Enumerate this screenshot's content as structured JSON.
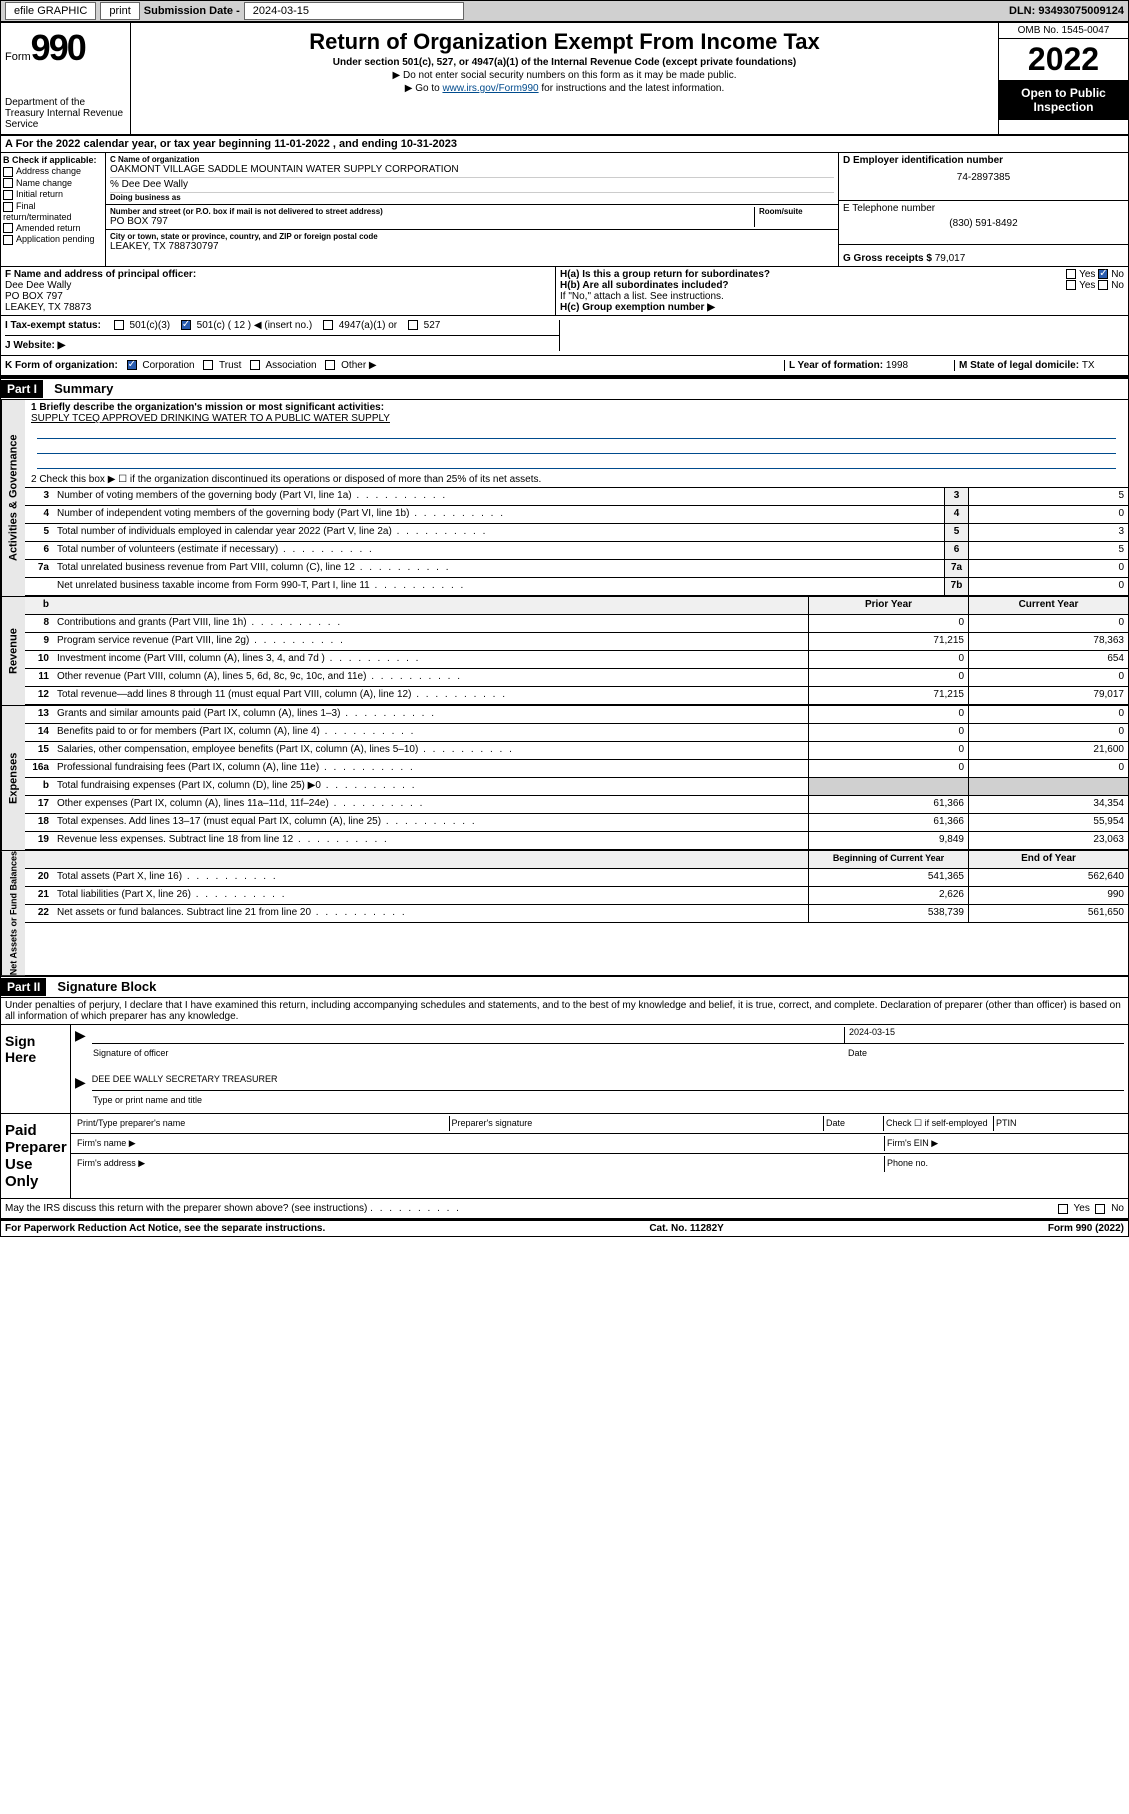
{
  "topbar": {
    "efile": "efile GRAPHIC",
    "print": "print",
    "submission_label": "Submission Date - ",
    "submission_date": "2024-03-15",
    "dln_label": "DLN: ",
    "dln": "93493075009124"
  },
  "header": {
    "form_label": "Form",
    "form_no": "990",
    "dept": "Department of the Treasury Internal Revenue Service",
    "title": "Return of Organization Exempt From Income Tax",
    "subtitle": "Under section 501(c), 527, or 4947(a)(1) of the Internal Revenue Code (except private foundations)",
    "note1": "▶ Do not enter social security numbers on this form as it may be made public.",
    "note2_pre": "▶ Go to ",
    "note2_link": "www.irs.gov/Form990",
    "note2_post": " for instructions and the latest information.",
    "omb": "OMB No. 1545-0047",
    "year": "2022",
    "open": "Open to Public Inspection"
  },
  "line_a": "A For the 2022 calendar year, or tax year beginning 11-01-2022   , and ending 10-31-2023",
  "section_b": {
    "label": "B Check if applicable:",
    "items": [
      "Address change",
      "Name change",
      "Initial return",
      "Final return/terminated",
      "Amended return",
      "Application pending"
    ]
  },
  "section_c": {
    "name_label": "C Name of organization",
    "name": "OAKMONT VILLAGE SADDLE MOUNTAIN WATER SUPPLY CORPORATION",
    "care_of": "% Dee Dee Wally",
    "dba_label": "Doing business as",
    "street_label": "Number and street (or P.O. box if mail is not delivered to street address)",
    "room_label": "Room/suite",
    "street": "PO BOX 797",
    "city_label": "City or town, state or province, country, and ZIP or foreign postal code",
    "city": "LEAKEY, TX  788730797"
  },
  "section_d": {
    "label": "D Employer identification number",
    "value": "74-2897385"
  },
  "section_e": {
    "label": "E Telephone number",
    "value": "(830) 591-8492"
  },
  "section_g": {
    "label": "G Gross receipts $",
    "value": "79,017"
  },
  "section_f": {
    "label": "F Name and address of principal officer:",
    "name": "Dee Dee Wally",
    "street": "PO BOX 797",
    "city": "LEAKEY, TX  78873"
  },
  "section_h": {
    "ha": "H(a)  Is this a group return for subordinates?",
    "ha_yes": "Yes",
    "ha_no": "No",
    "hb": "H(b)  Are all subordinates included?",
    "hb_note": "If \"No,\" attach a list. See instructions.",
    "hc": "H(c)  Group exemption number ▶"
  },
  "section_i": {
    "label": "I   Tax-exempt status:",
    "opts": [
      "501(c)(3)",
      "501(c) ( 12 ) ◀ (insert no.)",
      "4947(a)(1) or",
      "527"
    ]
  },
  "section_j": {
    "label": "J   Website: ▶"
  },
  "section_k": {
    "label": "K Form of organization:",
    "opts": [
      "Corporation",
      "Trust",
      "Association",
      "Other ▶"
    ]
  },
  "section_l": {
    "label": "L Year of formation: ",
    "value": "1998"
  },
  "section_m": {
    "label": "M State of legal domicile: ",
    "value": "TX"
  },
  "part1": {
    "header": "Part I",
    "title": "Summary",
    "side_labels": [
      "Activities & Governance",
      "Revenue",
      "Expenses",
      "Net Assets or Fund Balances"
    ],
    "line1_label": "1   Briefly describe the organization's mission or most significant activities:",
    "line1_text": "SUPPLY TCEQ APPROVED DRINKING WATER TO A PUBLIC WATER SUPPLY",
    "line2": "2   Check this box ▶ ☐  if the organization discontinued its operations or disposed of more than 25% of its net assets.",
    "rows_gov": [
      {
        "n": "3",
        "desc": "Number of voting members of the governing body (Part VI, line 1a)",
        "box": "3",
        "val": "5"
      },
      {
        "n": "4",
        "desc": "Number of independent voting members of the governing body (Part VI, line 1b)",
        "box": "4",
        "val": "0"
      },
      {
        "n": "5",
        "desc": "Total number of individuals employed in calendar year 2022 (Part V, line 2a)",
        "box": "5",
        "val": "3"
      },
      {
        "n": "6",
        "desc": "Total number of volunteers (estimate if necessary)",
        "box": "6",
        "val": "5"
      },
      {
        "n": "7a",
        "desc": "Total unrelated business revenue from Part VIII, column (C), line 12",
        "box": "7a",
        "val": "0"
      },
      {
        "n": "",
        "desc": "Net unrelated business taxable income from Form 990-T, Part I, line 11",
        "box": "7b",
        "val": "0"
      }
    ],
    "col_headers": {
      "prior": "Prior Year",
      "current": "Current Year"
    },
    "rows_rev": [
      {
        "n": "8",
        "desc": "Contributions and grants (Part VIII, line 1h)",
        "prior": "0",
        "cur": "0"
      },
      {
        "n": "9",
        "desc": "Program service revenue (Part VIII, line 2g)",
        "prior": "71,215",
        "cur": "78,363"
      },
      {
        "n": "10",
        "desc": "Investment income (Part VIII, column (A), lines 3, 4, and 7d )",
        "prior": "0",
        "cur": "654"
      },
      {
        "n": "11",
        "desc": "Other revenue (Part VIII, column (A), lines 5, 6d, 8c, 9c, 10c, and 11e)",
        "prior": "0",
        "cur": "0"
      },
      {
        "n": "12",
        "desc": "Total revenue—add lines 8 through 11 (must equal Part VIII, column (A), line 12)",
        "prior": "71,215",
        "cur": "79,017"
      }
    ],
    "rows_exp": [
      {
        "n": "13",
        "desc": "Grants and similar amounts paid (Part IX, column (A), lines 1–3)",
        "prior": "0",
        "cur": "0"
      },
      {
        "n": "14",
        "desc": "Benefits paid to or for members (Part IX, column (A), line 4)",
        "prior": "0",
        "cur": "0"
      },
      {
        "n": "15",
        "desc": "Salaries, other compensation, employee benefits (Part IX, column (A), lines 5–10)",
        "prior": "0",
        "cur": "21,600"
      },
      {
        "n": "16a",
        "desc": "Professional fundraising fees (Part IX, column (A), line 11e)",
        "prior": "0",
        "cur": "0"
      },
      {
        "n": "b",
        "desc": "Total fundraising expenses (Part IX, column (D), line 25) ▶0",
        "prior": "",
        "cur": ""
      },
      {
        "n": "17",
        "desc": "Other expenses (Part IX, column (A), lines 11a–11d, 11f–24e)",
        "prior": "61,366",
        "cur": "34,354"
      },
      {
        "n": "18",
        "desc": "Total expenses. Add lines 13–17 (must equal Part IX, column (A), line 25)",
        "prior": "61,366",
        "cur": "55,954"
      },
      {
        "n": "19",
        "desc": "Revenue less expenses. Subtract line 18 from line 12",
        "prior": "9,849",
        "cur": "23,063"
      }
    ],
    "col_headers2": {
      "begin": "Beginning of Current Year",
      "end": "End of Year"
    },
    "rows_net": [
      {
        "n": "20",
        "desc": "Total assets (Part X, line 16)",
        "prior": "541,365",
        "cur": "562,640"
      },
      {
        "n": "21",
        "desc": "Total liabilities (Part X, line 26)",
        "prior": "2,626",
        "cur": "990"
      },
      {
        "n": "22",
        "desc": "Net assets or fund balances. Subtract line 21 from line 20",
        "prior": "538,739",
        "cur": "561,650"
      }
    ]
  },
  "part2": {
    "header": "Part II",
    "title": "Signature Block",
    "declaration": "Under penalties of perjury, I declare that I have examined this return, including accompanying schedules and statements, and to the best of my knowledge and belief, it is true, correct, and complete. Declaration of preparer (other than officer) is based on all information of which preparer has any knowledge.",
    "sign_here": "Sign Here",
    "sig_officer": "Signature of officer",
    "sig_date_label": "Date",
    "sig_date": "2024-03-15",
    "officer_name": "DEE DEE WALLY  SECRETARY TREASURER",
    "type_name": "Type or print name and title",
    "paid_preparer": "Paid Preparer Use Only",
    "prep_cols": [
      "Print/Type preparer's name",
      "Preparer's signature",
      "Date"
    ],
    "prep_check": "Check ☐ if self-employed",
    "prep_ptin": "PTIN",
    "firm_name": "Firm's name   ▶",
    "firm_ein": "Firm's EIN ▶",
    "firm_addr": "Firm's address ▶",
    "phone": "Phone no.",
    "may_irs": "May the IRS discuss this return with the preparer shown above? (see instructions)",
    "yes": "Yes",
    "no": "No"
  },
  "footer": {
    "left": "For Paperwork Reduction Act Notice, see the separate instructions.",
    "center": "Cat. No. 11282Y",
    "right": "Form 990 (2022)"
  }
}
